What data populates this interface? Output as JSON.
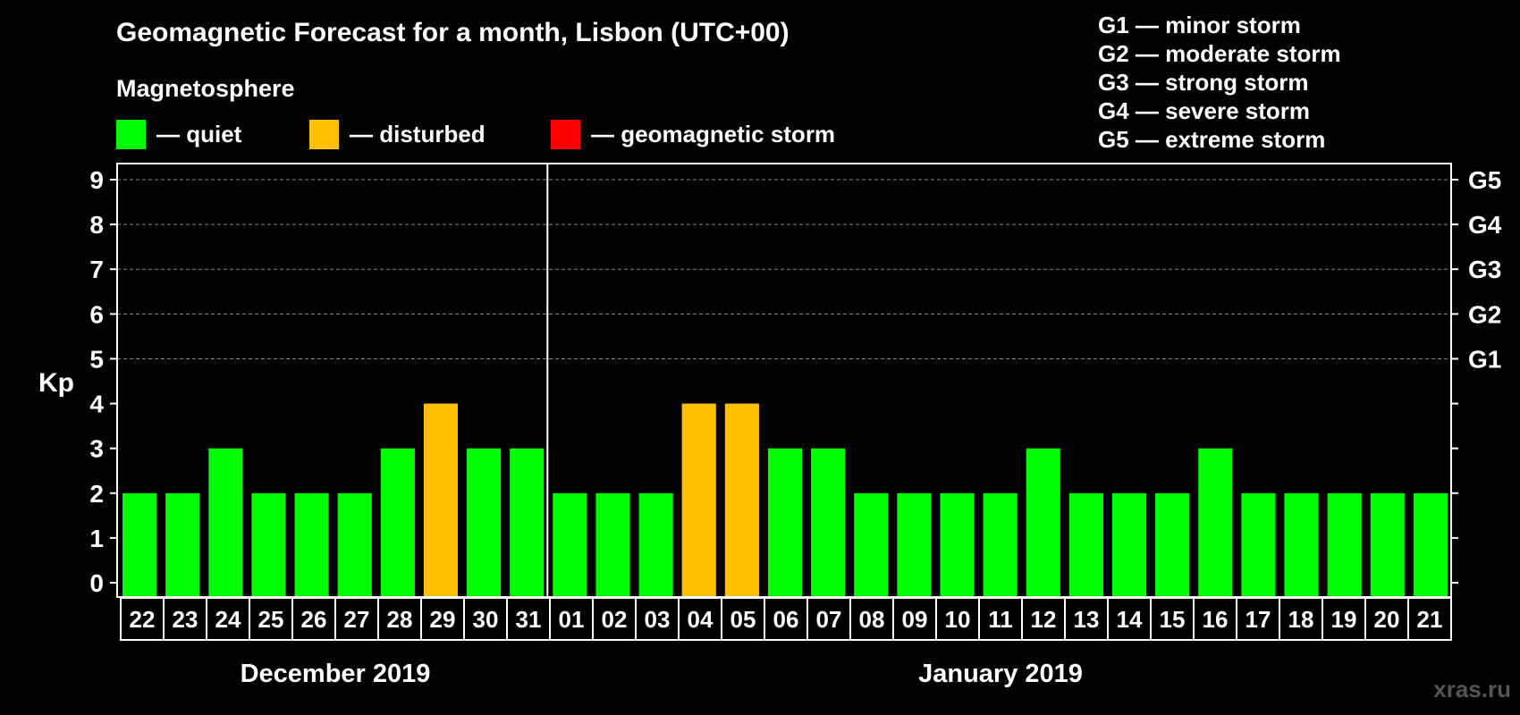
{
  "title": "Geomagnetic Forecast for a month, Lisbon (UTC+00)",
  "magnetosphere_label": "Magnetosphere",
  "legend": [
    {
      "label": "— quiet",
      "color": "#00ff00"
    },
    {
      "label": "— disturbed",
      "color": "#ffc000"
    },
    {
      "label": "— geomagnetic storm",
      "color": "#ff0000"
    }
  ],
  "storm_legend": [
    "G1 — minor storm",
    "G2 — moderate storm",
    "G3 — strong storm",
    "G4 — severe storm",
    "G5 — extreme storm"
  ],
  "watermark": "xras.ru",
  "chart_data": {
    "type": "bar",
    "ylabel": "Kp",
    "ylim": [
      0,
      9
    ],
    "y_ticks": [
      0,
      1,
      2,
      3,
      4,
      5,
      6,
      7,
      8,
      9
    ],
    "right_ticks": [
      {
        "value": 5,
        "label": "G1"
      },
      {
        "value": 6,
        "label": "G2"
      },
      {
        "value": 7,
        "label": "G3"
      },
      {
        "value": 8,
        "label": "G4"
      },
      {
        "value": 9,
        "label": "G5"
      }
    ],
    "categories": [
      "22",
      "23",
      "24",
      "25",
      "26",
      "27",
      "28",
      "29",
      "30",
      "31",
      "01",
      "02",
      "03",
      "04",
      "05",
      "06",
      "07",
      "08",
      "09",
      "10",
      "11",
      "12",
      "13",
      "14",
      "15",
      "16",
      "17",
      "18",
      "19",
      "20",
      "21"
    ],
    "values": [
      2,
      2,
      3,
      2,
      2,
      2,
      3,
      4,
      3,
      3,
      2,
      2,
      2,
      4,
      4,
      3,
      3,
      2,
      2,
      2,
      2,
      3,
      2,
      2,
      2,
      3,
      2,
      2,
      2,
      2,
      2
    ],
    "months": [
      {
        "label": "December 2019",
        "start": 0,
        "end": 9
      },
      {
        "label": "January 2019",
        "start": 10,
        "end": 30
      }
    ],
    "grid": true
  }
}
